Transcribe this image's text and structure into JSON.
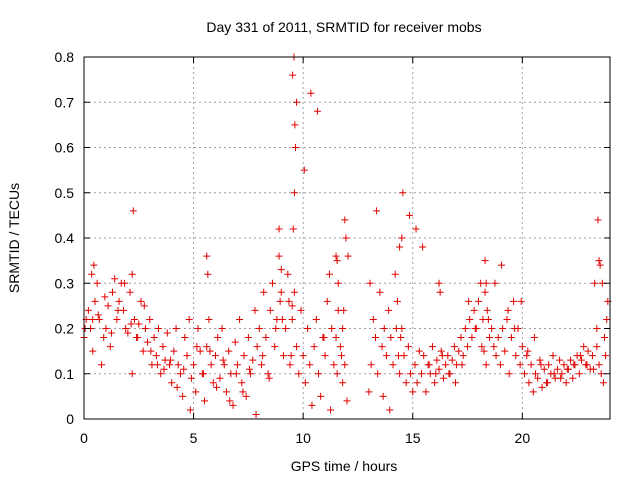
{
  "chart_data": {
    "type": "scatter",
    "title": "Day 331 of 2011, SRMTID for receiver mobs",
    "xlabel": "GPS time / hours",
    "ylabel": "SRMTID / TECUs",
    "xlim": [
      0,
      24
    ],
    "ylim": [
      0,
      0.8
    ],
    "xticks": [
      0,
      5,
      10,
      15,
      20
    ],
    "xtick_labels": [
      "0",
      "5",
      "10",
      "15",
      "20"
    ],
    "yticks": [
      0,
      0.1,
      0.2,
      0.3,
      0.4,
      0.5,
      0.6,
      0.7,
      0.8
    ],
    "ytick_labels": [
      "0",
      "0.1",
      "0.2",
      "0.3",
      "0.4",
      "0.5",
      "0.6",
      "0.7",
      "0.8"
    ],
    "grid": true,
    "marker": "+",
    "color": "#e00000",
    "series": [
      {
        "name": "SRMTID",
        "x": [
          0.0,
          0.1,
          0.2,
          0.3,
          0.4,
          0.5,
          0.6,
          0.7,
          0.8,
          0.9,
          1.0,
          1.1,
          1.2,
          1.3,
          1.4,
          1.5,
          1.6,
          1.7,
          1.8,
          1.9,
          2.0,
          2.1,
          2.2,
          2.3,
          2.4,
          2.5,
          2.6,
          2.7,
          2.8,
          2.9,
          3.0,
          3.1,
          3.2,
          3.3,
          3.4,
          3.5,
          3.6,
          3.7,
          3.8,
          3.9,
          4.0,
          4.1,
          4.2,
          4.3,
          4.4,
          4.5,
          4.6,
          4.7,
          4.8,
          4.9,
          5.0,
          5.1,
          5.2,
          5.3,
          5.4,
          5.5,
          5.6,
          5.7,
          5.8,
          5.9,
          6.0,
          6.1,
          6.2,
          6.3,
          6.4,
          6.5,
          6.6,
          6.7,
          6.8,
          6.9,
          7.0,
          7.1,
          7.2,
          7.3,
          7.4,
          7.5,
          7.6,
          7.7,
          7.8,
          7.9,
          8.0,
          8.1,
          8.2,
          8.3,
          8.4,
          8.5,
          8.6,
          8.7,
          8.8,
          8.9,
          9.0,
          9.1,
          9.2,
          9.3,
          9.4,
          9.5,
          9.6,
          9.7,
          9.8,
          9.9,
          10.0,
          10.1,
          10.2,
          10.3,
          10.4,
          10.5,
          10.6,
          10.7,
          10.8,
          10.9,
          11.0,
          11.1,
          11.2,
          11.3,
          11.4,
          11.5,
          11.6,
          11.7,
          11.8,
          11.9,
          12.0,
          13.0,
          13.1,
          13.2,
          13.3,
          13.4,
          13.5,
          13.6,
          13.7,
          13.8,
          13.9,
          14.0,
          14.1,
          14.2,
          14.3,
          14.4,
          14.5,
          14.6,
          14.7,
          14.8,
          14.9,
          15.0,
          15.1,
          15.2,
          15.3,
          15.4,
          15.5,
          15.6,
          15.7,
          15.8,
          15.9,
          16.0,
          16.1,
          16.2,
          16.3,
          16.4,
          16.5,
          16.6,
          16.7,
          16.8,
          16.9,
          17.0,
          17.1,
          17.2,
          17.3,
          17.4,
          17.5,
          17.6,
          17.7,
          17.8,
          17.9,
          18.0,
          18.1,
          18.2,
          18.3,
          18.4,
          18.5,
          18.6,
          18.7,
          18.8,
          18.9,
          19.0,
          19.1,
          19.2,
          19.3,
          19.4,
          19.5,
          19.6,
          19.7,
          19.8,
          19.9,
          20.0,
          20.1,
          20.2,
          20.3,
          20.4,
          20.5,
          20.6,
          20.7,
          20.8,
          20.9,
          21.0,
          21.1,
          21.2,
          21.3,
          21.4,
          21.5,
          21.6,
          21.7,
          21.8,
          21.9,
          22.0,
          22.1,
          22.2,
          22.3,
          22.4,
          22.5,
          22.6,
          22.7,
          22.8,
          22.9,
          23.0,
          23.1,
          23.2,
          23.3,
          23.4,
          23.5,
          23.6,
          23.7,
          23.8,
          23.9,
          0.05,
          0.35,
          0.65,
          0.95,
          1.25,
          1.55,
          1.85,
          2.15,
          2.45,
          2.75,
          3.05,
          3.35,
          3.65,
          3.95,
          4.25,
          4.55,
          4.85,
          5.15,
          5.45,
          5.75,
          6.05,
          6.35,
          6.65,
          6.95,
          7.25,
          7.55,
          7.85,
          8.15,
          8.45,
          8.75,
          9.05,
          9.35,
          9.45,
          9.5,
          9.55,
          9.6,
          9.65,
          9.7,
          9.52,
          9.58,
          9.62,
          10.05,
          10.35,
          10.65,
          10.95,
          11.25,
          11.55,
          11.75,
          11.8,
          11.85,
          11.9,
          11.95,
          12.05,
          13.05,
          13.35,
          13.65,
          13.95,
          14.25,
          14.35,
          14.4,
          14.45,
          14.5,
          14.55,
          14.85,
          15.15,
          15.45,
          15.75,
          16.05,
          16.35,
          16.65,
          16.95,
          17.25,
          17.55,
          17.85,
          18.15,
          18.25,
          18.35,
          18.45,
          18.75,
          19.05,
          19.35,
          19.65,
          19.95,
          20.25,
          20.55,
          20.85,
          21.15,
          21.45,
          21.75,
          22.05,
          22.35,
          22.65,
          22.95,
          23.25,
          23.4,
          23.45,
          23.5,
          23.55,
          23.65,
          23.75,
          23.85,
          2.2,
          2.25,
          8.9,
          8.95,
          9.0,
          11.5,
          11.55,
          11.6,
          0.4,
          0.45,
          5.6,
          5.65,
          16.2,
          16.25,
          18.3,
          18.35
        ],
        "y": [
          0.18,
          0.22,
          0.24,
          0.2,
          0.15,
          0.26,
          0.3,
          0.22,
          0.12,
          0.18,
          0.2,
          0.25,
          0.16,
          0.28,
          0.31,
          0.22,
          0.26,
          0.3,
          0.24,
          0.2,
          0.19,
          0.28,
          0.32,
          0.22,
          0.18,
          0.21,
          0.26,
          0.15,
          0.2,
          0.17,
          0.22,
          0.12,
          0.18,
          0.14,
          0.2,
          0.1,
          0.16,
          0.13,
          0.19,
          0.12,
          0.08,
          0.15,
          0.2,
          0.12,
          0.1,
          0.05,
          0.18,
          0.14,
          0.22,
          0.09,
          0.12,
          0.06,
          0.2,
          0.15,
          0.1,
          0.04,
          0.16,
          0.22,
          0.12,
          0.08,
          0.14,
          0.18,
          0.09,
          0.2,
          0.12,
          0.06,
          0.15,
          0.1,
          0.03,
          0.17,
          0.12,
          0.22,
          0.08,
          0.14,
          0.05,
          0.18,
          0.1,
          0.13,
          0.24,
          0.16,
          0.2,
          0.12,
          0.28,
          0.18,
          0.1,
          0.24,
          0.3,
          0.16,
          0.22,
          0.36,
          0.28,
          0.14,
          0.2,
          0.32,
          0.12,
          0.22,
          0.28,
          0.16,
          0.1,
          0.24,
          0.14,
          0.08,
          0.2,
          0.12,
          0.03,
          0.16,
          0.22,
          0.1,
          0.05,
          0.18,
          0.14,
          0.26,
          0.32,
          0.2,
          0.12,
          0.36,
          0.24,
          0.16,
          0.08,
          0.12,
          0.04,
          0.06,
          0.12,
          0.22,
          0.18,
          0.1,
          0.28,
          0.16,
          0.2,
          0.14,
          0.24,
          0.18,
          0.12,
          0.32,
          0.26,
          0.38,
          0.2,
          0.14,
          0.08,
          0.16,
          0.1,
          0.06,
          0.12,
          0.08,
          0.15,
          0.1,
          0.14,
          0.06,
          0.12,
          0.1,
          0.16,
          0.08,
          0.13,
          0.11,
          0.15,
          0.09,
          0.12,
          0.14,
          0.1,
          0.13,
          0.16,
          0.12,
          0.15,
          0.18,
          0.14,
          0.2,
          0.16,
          0.22,
          0.18,
          0.24,
          0.2,
          0.26,
          0.3,
          0.22,
          0.28,
          0.24,
          0.18,
          0.2,
          0.16,
          0.14,
          0.18,
          0.12,
          0.2,
          0.15,
          0.22,
          0.1,
          0.18,
          0.26,
          0.14,
          0.2,
          0.12,
          0.16,
          0.1,
          0.14,
          0.08,
          0.12,
          0.06,
          0.1,
          0.09,
          0.13,
          0.07,
          0.11,
          0.08,
          0.12,
          0.1,
          0.14,
          0.09,
          0.11,
          0.13,
          0.1,
          0.12,
          0.08,
          0.11,
          0.13,
          0.09,
          0.12,
          0.14,
          0.1,
          0.13,
          0.16,
          0.12,
          0.15,
          0.11,
          0.14,
          0.3,
          0.2,
          0.12,
          0.1,
          0.08,
          0.14,
          0.26,
          0.2,
          0.32,
          0.23,
          0.27,
          0.19,
          0.24,
          0.3,
          0.21,
          0.18,
          0.25,
          0.15,
          0.12,
          0.11,
          0.13,
          0.07,
          0.11,
          0.02,
          0.16,
          0.1,
          0.15,
          0.07,
          0.13,
          0.04,
          0.1,
          0.06,
          0.11,
          0.01,
          0.14,
          0.09,
          0.2,
          0.22,
          0.26,
          0.14,
          0.25,
          0.42,
          0.5,
          0.6,
          0.7,
          0.76,
          0.8,
          0.65,
          0.55,
          0.72,
          0.68,
          0.18,
          0.02,
          0.1,
          0.14,
          0.2,
          0.24,
          0.44,
          0.4,
          0.36,
          0.3,
          0.46,
          0.05,
          0.02,
          0.2,
          0.14,
          0.1,
          0.18,
          0.4,
          0.5,
          0.45,
          0.42,
          0.38,
          0.12,
          0.1,
          0.14,
          0.1,
          0.08,
          0.12,
          0.26,
          0.2,
          0.16,
          0.15,
          0.12,
          0.22,
          0.3,
          0.34,
          0.24,
          0.2,
          0.26,
          0.15,
          0.18,
          0.12,
          0.08,
          0.1,
          0.09,
          0.11,
          0.12,
          0.14,
          0.12,
          0.11,
          0.16,
          0.44,
          0.35,
          0.34,
          0.3,
          0.18,
          0.22,
          0.1,
          0.46,
          0.42,
          0.26,
          0.33,
          0.18,
          0.35,
          0.3,
          0.22,
          0.34,
          0.36,
          0.32,
          0.3,
          0.28,
          0.35,
          0.3
        ],
        "color": "#e00000"
      }
    ]
  }
}
